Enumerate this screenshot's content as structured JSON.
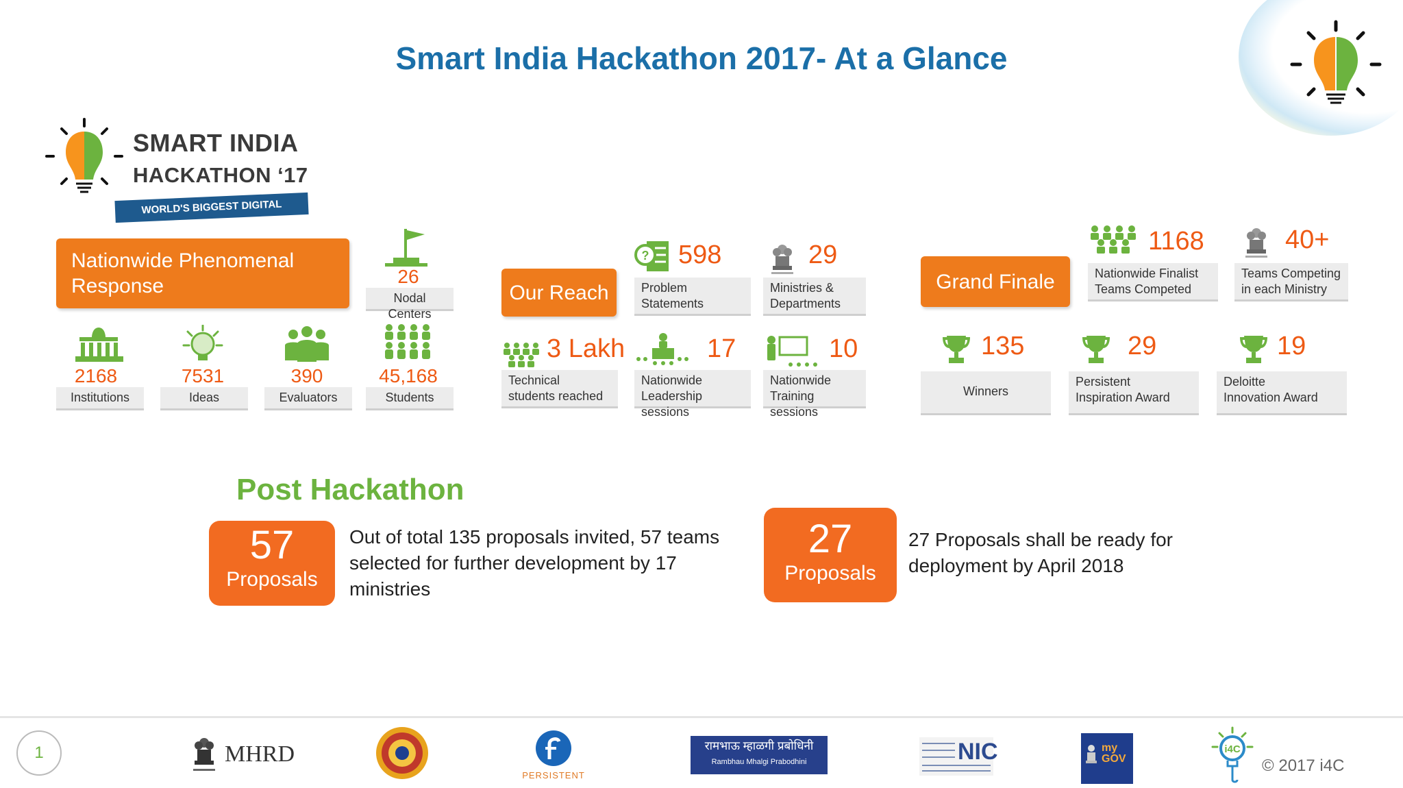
{
  "title": "Smart India Hackathon 2017- At a Glance",
  "logo": {
    "line1": "SMART INDIA",
    "line2": "HACKATHON ‘17",
    "tagline": "WORLD'S BIGGEST DIGITAL MOVEMENT"
  },
  "nationwide": {
    "header": "Nationwide Phenomenal Response",
    "stats": [
      {
        "value": "26",
        "label": "Nodal Centers",
        "icon": "flag-icon"
      },
      {
        "value": "2168",
        "label": "Institutions",
        "icon": "institution-icon"
      },
      {
        "value": "7531",
        "label": "Ideas",
        "icon": "idea-brain-icon"
      },
      {
        "value": "390",
        "label": "Evaluators",
        "icon": "evaluators-icon"
      },
      {
        "value": "45,168",
        "label": "Students",
        "icon": "students-icon"
      }
    ]
  },
  "reach": {
    "header": "Our Reach",
    "stats": [
      {
        "value": "598",
        "label1": "Problem",
        "label2": "Statements",
        "icon": "problem-statement-icon"
      },
      {
        "value": "29",
        "label1": "Ministries &",
        "label2": "Departments",
        "icon": "emblem-icon"
      },
      {
        "value": "3 Lakh",
        "label1": "Technical",
        "label2": "students reached",
        "icon": "crowd-icon"
      },
      {
        "value": "17",
        "label1": "Nationwide",
        "label2": "Leadership sessions",
        "icon": "leadership-icon"
      },
      {
        "value": "10",
        "label1": "Nationwide",
        "label2": "Training sessions",
        "icon": "training-icon"
      }
    ]
  },
  "finale": {
    "header": "Grand Finale",
    "stats": [
      {
        "value": "1168",
        "label1": "Nationwide Finalist",
        "label2": "Teams Competed",
        "icon": "teams-icon"
      },
      {
        "value": "40+",
        "label1": "Teams Competing",
        "label2": "in each Ministry",
        "icon": "emblem-icon"
      },
      {
        "value": "135",
        "label1": "Winners",
        "label2": "",
        "icon": "trophy-icon"
      },
      {
        "value": "29",
        "label1": "Persistent",
        "label2": "Inspiration Award",
        "icon": "trophy-icon"
      },
      {
        "value": "19",
        "label1": "Deloitte",
        "label2": "Innovation Award",
        "icon": "trophy-icon"
      }
    ]
  },
  "post": {
    "title": "Post Hackathon",
    "boxes": [
      {
        "number": "57",
        "label": "Proposals",
        "description": "Out of total 135 proposals invited, 57 teams selected for further development by 17 ministries"
      },
      {
        "number": "27",
        "label": "Proposals",
        "description": "27 Proposals shall be ready for deployment by April 2018"
      }
    ]
  },
  "footer": {
    "page_number": "1",
    "mhrd": "MHRD",
    "persistent": "PERSISTENT",
    "rambhau": "रामभाऊ म्हाळगी प्रबोधिनी",
    "rambhau_en": "Rambhau Mhalgi Prabodhini",
    "nic": "NIC",
    "mygov": "my GOV",
    "copyright": "© 2017 i4C"
  },
  "colors": {
    "accent_orange": "#ee7b1c",
    "title_blue": "#1b6fa8",
    "green": "#6cb33f",
    "value_red": "#ee5a14"
  }
}
